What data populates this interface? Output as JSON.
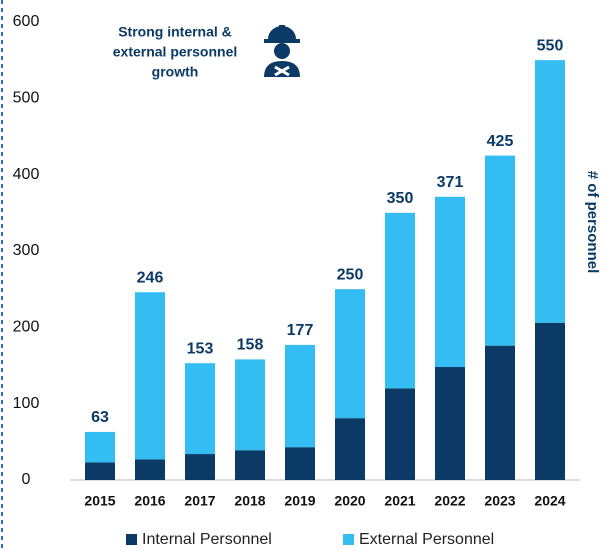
{
  "chart_data": {
    "type": "stacked_bar",
    "annotation": [
      "Strong internal &",
      "external personnel",
      "growth"
    ],
    "y_label": "# of personnel",
    "categories": [
      "2015",
      "2016",
      "2017",
      "2018",
      "2019",
      "2020",
      "2021",
      "2022",
      "2023",
      "2024"
    ],
    "series": [
      {
        "name": "Internal Personnel",
        "color": "#0b3a66",
        "values": [
          23,
          27,
          34,
          39,
          43,
          81,
          120,
          148,
          176,
          206
        ]
      },
      {
        "name": "External Personnel",
        "color": "#33bdf2",
        "values": [
          40,
          219,
          119,
          119,
          134,
          169,
          230,
          223,
          249,
          344
        ]
      }
    ],
    "totals": [
      63,
      246,
      153,
      158,
      177,
      250,
      350,
      371,
      425,
      550
    ],
    "ylim": [
      0,
      600
    ],
    "yticks": [
      0,
      100,
      200,
      300,
      400,
      500,
      600
    ],
    "legend": "bottom"
  }
}
